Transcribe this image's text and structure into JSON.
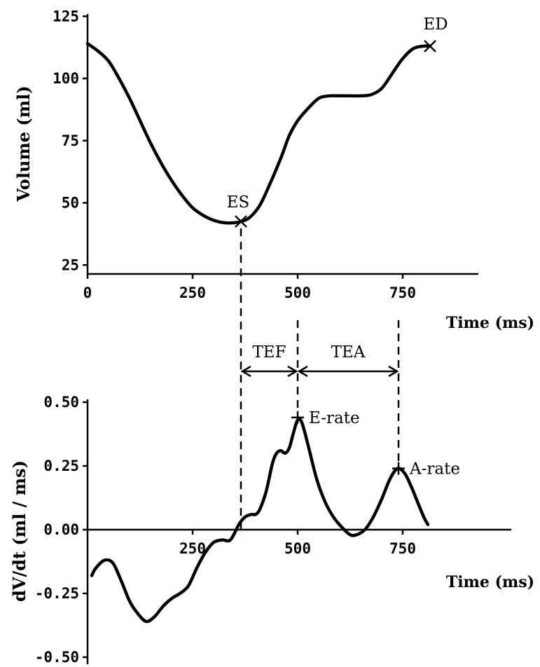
{
  "chart_data": [
    {
      "type": "line",
      "ylabel": "Volume  (ml)",
      "xlabel": "Time (ms)",
      "xlim": [
        0,
        900
      ],
      "ylim": [
        20,
        125
      ],
      "x_ticks": [
        0,
        250,
        500,
        750
      ],
      "y_ticks": [
        25,
        50,
        75,
        100,
        125
      ],
      "grid": false,
      "series": [
        {
          "x": [
            0,
            25,
            50,
            75,
            100,
            125,
            150,
            175,
            200,
            225,
            250,
            275,
            300,
            325,
            350,
            365,
            385,
            410,
            435,
            460,
            480,
            500,
            525,
            550,
            575,
            600,
            625,
            650,
            675,
            700,
            725,
            750,
            775,
            800,
            815
          ],
          "y": [
            114,
            111,
            107,
            100,
            92,
            83,
            74,
            66,
            59,
            53,
            48,
            45,
            43,
            42,
            42,
            42.5,
            44,
            49,
            58,
            68,
            77,
            83,
            88,
            92,
            93,
            93,
            93,
            93,
            93.5,
            96,
            102,
            108,
            112,
            113,
            113
          ]
        }
      ],
      "annotations": [
        {
          "label": "ES",
          "x": 365,
          "y": 42.5
        },
        {
          "label": "ED",
          "x": 815,
          "y": 113
        }
      ]
    },
    {
      "type": "line",
      "ylabel": "dV/dt (ml / ms)",
      "xlabel": "Time (ms)",
      "xlim": [
        0,
        900
      ],
      "ylim": [
        -0.5,
        0.5
      ],
      "x_ticks": [
        250,
        500,
        750
      ],
      "y_ticks": [
        0.5,
        0.25,
        0,
        -0.25,
        -0.5
      ],
      "y_tick_labels": [
        "0.50",
        "0.25",
        "0.00",
        "-0.25",
        "-0.50"
      ],
      "grid": false,
      "series": [
        {
          "x": [
            10,
            20,
            40,
            60,
            80,
            100,
            120,
            140,
            160,
            180,
            200,
            220,
            240,
            260,
            280,
            300,
            320,
            340,
            360,
            375,
            390,
            400,
            410,
            425,
            440,
            450,
            460,
            470,
            480,
            490,
            500,
            510,
            525,
            545,
            565,
            585,
            605,
            625,
            640,
            660,
            680,
            700,
            720,
            738,
            755,
            770,
            785,
            800,
            810
          ],
          "y": [
            -0.18,
            -0.15,
            -0.12,
            -0.13,
            -0.2,
            -0.28,
            -0.33,
            -0.36,
            -0.34,
            -0.3,
            -0.27,
            -0.25,
            -0.22,
            -0.15,
            -0.09,
            -0.05,
            -0.04,
            -0.04,
            0.02,
            0.05,
            0.06,
            0.06,
            0.08,
            0.15,
            0.26,
            0.3,
            0.31,
            0.3,
            0.32,
            0.38,
            0.43,
            0.42,
            0.33,
            0.2,
            0.11,
            0.05,
            0.01,
            -0.02,
            -0.02,
            0.0,
            0.05,
            0.12,
            0.2,
            0.24,
            0.22,
            0.17,
            0.11,
            0.05,
            0.02
          ]
        }
      ],
      "annotations": [
        {
          "label": "E-rate",
          "x": 500,
          "y": 0.44
        },
        {
          "label": "A-rate",
          "x": 740,
          "y": 0.24
        }
      ],
      "intervals": [
        {
          "label": "TEF",
          "x_start": 365,
          "x_end": 500
        },
        {
          "label": "TEA",
          "x_start": 500,
          "x_end": 740
        }
      ]
    }
  ]
}
